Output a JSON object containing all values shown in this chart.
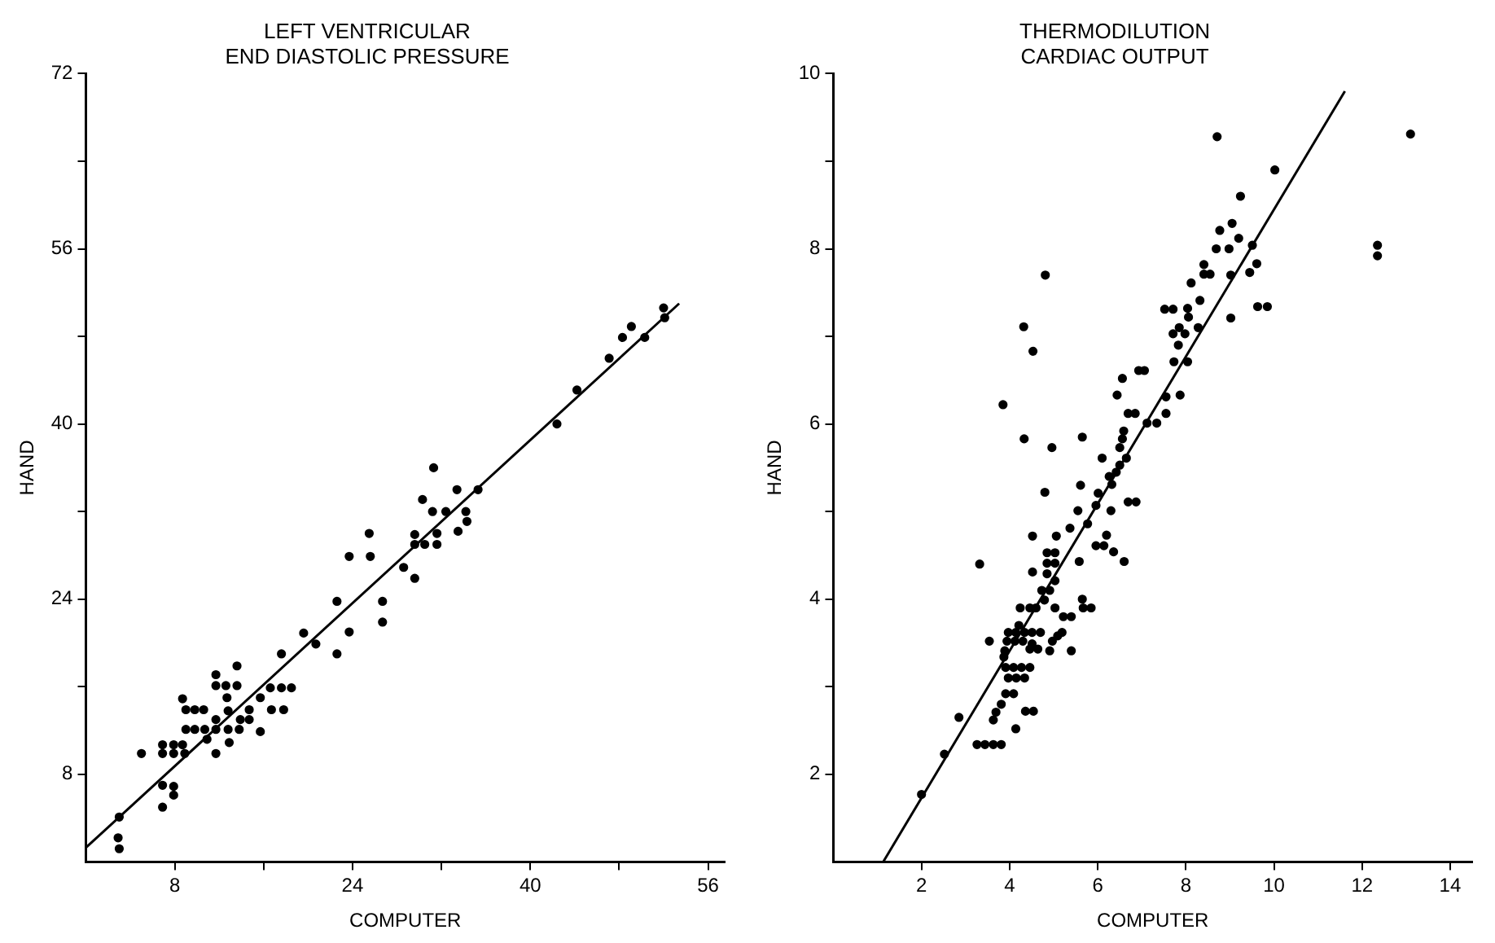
{
  "chart_data": [
    {
      "type": "scatter",
      "title": "LEFT VENTRICULAR\nEND DIASTOLIC PRESSURE",
      "xlabel": "COMPUTER",
      "ylabel": "HAND",
      "marker": "circle",
      "xlim": [
        0,
        57.5
      ],
      "ylim": [
        0,
        72
      ],
      "xticks": [
        8,
        {
          "value": 16,
          "label": null
        },
        24,
        {
          "value": 32,
          "label": null
        },
        40,
        {
          "value": 48,
          "label": null
        },
        56
      ],
      "yticks": [
        8,
        {
          "value": 16,
          "label": null
        },
        24,
        {
          "value": 32,
          "label": null
        },
        40,
        {
          "value": 48,
          "label": null
        },
        56,
        {
          "value": 64,
          "label": null
        },
        72
      ],
      "series": [
        {
          "type": "scatter",
          "color": "#000000",
          "x": [
            3.0,
            2.9,
            3.0,
            5.0,
            6.9,
            6.9,
            7.9,
            7.9,
            6.9,
            7.9,
            8.7,
            6.9,
            7.9,
            8.9,
            8.7,
            9.0,
            9.8,
            10.6,
            9.0,
            9.8,
            10.7,
            10.9,
            11.7,
            11.7,
            11.7,
            12.6,
            13.6,
            12.7,
            13.6,
            11.7,
            12.8,
            11.7,
            12.8,
            13.8,
            12.9,
            13.9,
            14.7,
            14.7,
            15.7,
            15.7,
            16.6,
            17.6,
            18.5,
            16.7,
            17.8,
            17.6,
            19.6,
            20.7,
            22.6,
            22.6,
            23.7,
            23.7,
            25.5,
            25.6,
            26.7,
            26.7,
            28.6,
            29.6,
            29.6,
            29.6,
            30.5,
            30.3,
            31.3,
            31.2,
            31.6,
            31.6,
            32.4,
            33.4,
            33.5,
            34.2,
            34.3,
            35.3,
            42.4,
            44.2,
            47.1,
            48.3,
            49.1,
            50.3,
            52.0,
            52.1
          ],
          "values": [
            4.1,
            2.2,
            1.2,
            9.9,
            5.0,
            7.0,
            6.9,
            6.1,
            10.7,
            10.7,
            10.7,
            9.9,
            9.9,
            9.9,
            14.9,
            13.9,
            13.9,
            13.9,
            12.1,
            12.1,
            12.1,
            11.2,
            9.9,
            17.1,
            16.1,
            16.1,
            16.1,
            15.0,
            17.9,
            13.0,
            13.8,
            12.1,
            12.1,
            12.1,
            10.9,
            13.0,
            13.0,
            13.9,
            11.9,
            15.0,
            15.9,
            15.9,
            15.9,
            13.9,
            13.9,
            19.0,
            20.9,
            19.9,
            19.0,
            23.8,
            21.0,
            27.9,
            30.0,
            27.9,
            23.8,
            21.9,
            26.9,
            25.9,
            29.9,
            29.0,
            29.0,
            33.1,
            36.0,
            32.0,
            30.0,
            29.0,
            32.0,
            34.0,
            30.2,
            32.0,
            31.1,
            34.0,
            40.0,
            43.1,
            46.0,
            47.9,
            48.9,
            47.9,
            50.6,
            49.7
          ]
        },
        {
          "type": "line",
          "color": "#000000",
          "marker": "none",
          "x": [
            0,
            53.4
          ],
          "values": [
            1.3,
            51.0
          ]
        }
      ]
    },
    {
      "type": "scatter",
      "title": "THERMODILUTION\nCARDIAC OUTPUT",
      "xlabel": "COMPUTER",
      "ylabel": "HAND",
      "marker": "circle",
      "xlim": [
        0,
        14.5
      ],
      "ylim": [
        1,
        10
      ],
      "xticks": [
        2,
        4,
        6,
        8,
        10,
        12,
        14
      ],
      "yticks": [
        2,
        {
          "value": 3,
          "label": null
        },
        4,
        {
          "value": 5,
          "label": null
        },
        6,
        {
          "value": 7,
          "label": null
        },
        8,
        {
          "value": 9,
          "label": null
        },
        10
      ],
      "series": [
        {
          "type": "scatter",
          "color": "#000000",
          "x": [
            2.0,
            2.52,
            2.85,
            3.26,
            3.44,
            3.63,
            3.81,
            3.54,
            3.32,
            3.85,
            4.53,
            4.33,
            4.96,
            5.65,
            4.8,
            5.61,
            4.52,
            5.06,
            5.37,
            5.55,
            5.77,
            5.96,
            6.2,
            6.14,
            6.36,
            6.6,
            5.58,
            4.85,
            5.03,
            4.85,
            5.03,
            4.52,
            4.85,
            5.03,
            4.73,
            4.91,
            4.79,
            5.03,
            4.24,
            4.46,
            4.6,
            5.22,
            5.4,
            5.65,
            5.67,
            5.85,
            3.97,
            4.14,
            4.34,
            4.51,
            4.7,
            3.94,
            4.12,
            4.3,
            4.46,
            4.64,
            4.97,
            5.19,
            4.91,
            5.4,
            3.89,
            3.91,
            4.09,
            4.27,
            4.46,
            3.97,
            4.15,
            4.34,
            3.91,
            4.09,
            3.81,
            3.69,
            3.63,
            4.14,
            4.36,
            4.54,
            3.87,
            4.21,
            4.51,
            5.09,
            5.96,
            6.3,
            6.01,
            6.32,
            6.26,
            6.42,
            6.1,
            6.5,
            6.65,
            6.69,
            6.87,
            6.5,
            6.59,
            6.56,
            6.69,
            6.85,
            6.44,
            6.56,
            6.93,
            7.06,
            7.12,
            7.34,
            7.55,
            7.55,
            7.87,
            8.71,
            10.02,
            9.24,
            8.77,
            9.05,
            8.69,
            8.98,
            9.2,
            9.51,
            9.61,
            8.41,
            8.41,
            8.55,
            9.02,
            9.45,
            8.12,
            8.32,
            7.52,
            7.71,
            8.04,
            8.06,
            8.28,
            7.85,
            7.71,
            7.98,
            7.83,
            7.73,
            8.04,
            9.02,
            9.63,
            9.85,
            13.1,
            12.35,
            12.35,
            4.81,
            4.32
          ],
          "values": [
            1.77,
            2.23,
            2.65,
            2.34,
            2.34,
            2.34,
            2.34,
            3.52,
            4.4,
            6.22,
            6.83,
            5.83,
            5.73,
            5.85,
            5.22,
            5.3,
            4.72,
            4.72,
            4.81,
            5.01,
            4.86,
            4.61,
            4.73,
            4.61,
            4.54,
            4.43,
            4.43,
            4.53,
            4.53,
            4.41,
            4.41,
            4.31,
            4.29,
            4.21,
            4.1,
            4.1,
            3.99,
            3.9,
            3.9,
            3.9,
            3.9,
            3.8,
            3.8,
            4.0,
            3.9,
            3.9,
            3.62,
            3.62,
            3.62,
            3.62,
            3.62,
            3.52,
            3.52,
            3.52,
            3.43,
            3.43,
            3.52,
            3.62,
            3.41,
            3.41,
            3.41,
            3.22,
            3.22,
            3.22,
            3.22,
            3.1,
            3.1,
            3.1,
            2.92,
            2.92,
            2.8,
            2.71,
            2.62,
            2.52,
            2.72,
            2.72,
            3.34,
            3.7,
            3.49,
            3.58,
            5.07,
            5.01,
            5.21,
            5.31,
            5.4,
            5.45,
            5.61,
            5.53,
            5.61,
            5.11,
            5.11,
            5.73,
            5.92,
            5.83,
            6.12,
            6.12,
            6.33,
            6.52,
            6.61,
            6.61,
            6.01,
            6.01,
            6.12,
            6.31,
            6.33,
            9.28,
            8.9,
            8.6,
            8.21,
            8.29,
            8.0,
            8.0,
            8.12,
            8.04,
            7.83,
            7.82,
            7.71,
            7.71,
            7.7,
            7.73,
            7.61,
            7.41,
            7.31,
            7.31,
            7.32,
            7.22,
            7.1,
            7.1,
            7.03,
            7.03,
            6.9,
            6.71,
            6.71,
            7.21,
            7.34,
            7.34,
            9.31,
            8.04,
            7.92,
            7.7,
            7.11
          ]
        },
        {
          "type": "line",
          "color": "#000000",
          "marker": "none",
          "x": [
            1.13,
            11.61
          ],
          "values": [
            1.0,
            9.8
          ]
        }
      ]
    }
  ]
}
